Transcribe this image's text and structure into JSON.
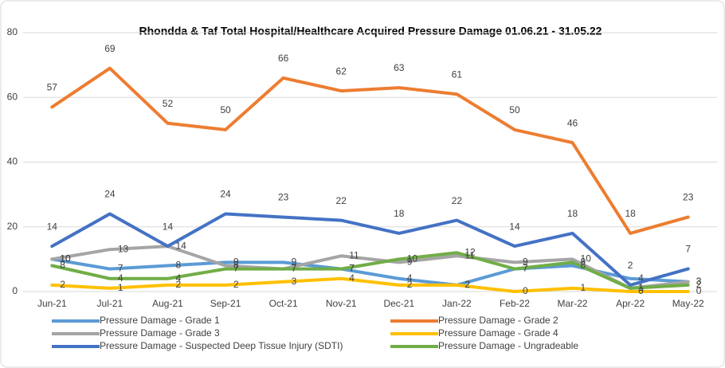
{
  "chart_data": {
    "type": "line",
    "title": "Rhondda & Taf Total Hospital/Healthcare Acquired Pressure Damage 01.06.21 - 31.05.22",
    "categories": [
      "Jun-21",
      "Jul-21",
      "Aug-21",
      "Sep-21",
      "Oct-21",
      "Nov-21",
      "Dec-21",
      "Jan-22",
      "Feb-22",
      "Mar-22",
      "Apr-22",
      "May-22"
    ],
    "series": [
      {
        "name": "Pressure Damage - Grade 1",
        "color": "#5b9bd5",
        "values": [
          10,
          7,
          8,
          9,
          9,
          7,
          4,
          2,
          7,
          8,
          4,
          3
        ]
      },
      {
        "name": "Pressure Damage - Grade 2",
        "color": "#ed7d31",
        "values": [
          57,
          69,
          52,
          50,
          66,
          62,
          63,
          61,
          50,
          46,
          18,
          23
        ]
      },
      {
        "name": "Pressure Damage - Grade 3",
        "color": "#a5a5a5",
        "values": [
          10,
          13,
          14,
          8,
          7,
          11,
          9,
          11,
          9,
          10,
          1,
          3
        ]
      },
      {
        "name": "Pressure Damage - Grade 4",
        "color": "#ffc000",
        "values": [
          2,
          1,
          2,
          2,
          3,
          4,
          2,
          2,
          0,
          1,
          0,
          0
        ]
      },
      {
        "name": "Pressure Damage - Suspected Deep Tissue Injury (SDTI)",
        "color": "#4472c4",
        "values": [
          14,
          24,
          14,
          24,
          23,
          22,
          18,
          22,
          14,
          18,
          2,
          7
        ]
      },
      {
        "name": "Pressure Damage - Ungradeable",
        "color": "#70ad47",
        "values": [
          8,
          4,
          4,
          7,
          7,
          7,
          10,
          12,
          7,
          9,
          1,
          2
        ]
      }
    ],
    "ylim": [
      0,
      80
    ],
    "yticks": [
      0,
      20,
      40,
      60,
      80
    ],
    "grid": true
  }
}
